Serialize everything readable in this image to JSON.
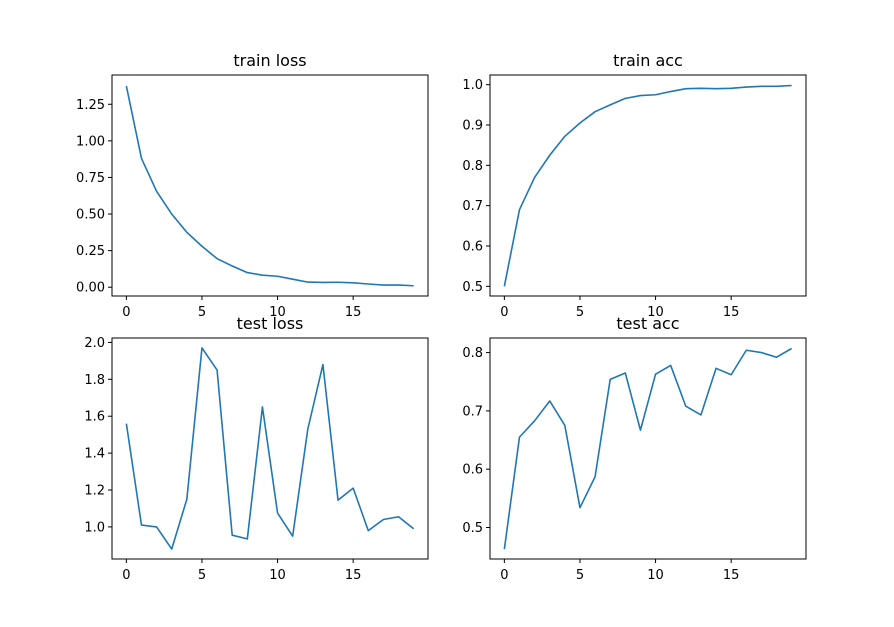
{
  "chart_data": [
    {
      "type": "line",
      "title": "train loss",
      "xlabel": "",
      "ylabel": "",
      "grid": false,
      "xlim": [
        -0.95,
        19.95
      ],
      "ylim": [
        -0.06,
        1.45
      ],
      "xticks": [
        0,
        5,
        10,
        15
      ],
      "xtick_labels": [
        "0",
        "5",
        "10",
        "15"
      ],
      "yticks": [
        0.0,
        0.25,
        0.5,
        0.75,
        1.0,
        1.25
      ],
      "ytick_labels": [
        "0.00",
        "0.25",
        "0.50",
        "0.75",
        "1.00",
        "1.25"
      ],
      "series": [
        {
          "color": "#1f77b4",
          "x": [
            0,
            1,
            2,
            3,
            4,
            5,
            6,
            7,
            8,
            9,
            10,
            11,
            12,
            13,
            14,
            15,
            16,
            17,
            18,
            19
          ],
          "y": [
            1.375,
            0.88,
            0.655,
            0.5,
            0.375,
            0.28,
            0.195,
            0.145,
            0.1,
            0.082,
            0.075,
            0.055,
            0.035,
            0.033,
            0.034,
            0.03,
            0.022,
            0.015,
            0.015,
            0.01
          ]
        }
      ]
    },
    {
      "type": "line",
      "title": "train acc",
      "xlabel": "",
      "ylabel": "",
      "grid": false,
      "xlim": [
        -0.95,
        19.95
      ],
      "ylim": [
        0.476,
        1.024
      ],
      "xticks": [
        0,
        5,
        10,
        15
      ],
      "xtick_labels": [
        "0",
        "5",
        "10",
        "15"
      ],
      "yticks": [
        0.5,
        0.6,
        0.7,
        0.8,
        0.9,
        1.0
      ],
      "ytick_labels": [
        "0.5",
        "0.6",
        "0.7",
        "0.8",
        "0.9",
        "1.0"
      ],
      "series": [
        {
          "color": "#1f77b4",
          "x": [
            0,
            1,
            2,
            3,
            4,
            5,
            6,
            7,
            8,
            9,
            10,
            11,
            12,
            13,
            14,
            15,
            16,
            17,
            18,
            19
          ],
          "y": [
            0.5,
            0.69,
            0.77,
            0.825,
            0.872,
            0.905,
            0.933,
            0.95,
            0.966,
            0.973,
            0.975,
            0.983,
            0.99,
            0.991,
            0.99,
            0.991,
            0.994,
            0.996,
            0.996,
            0.998
          ]
        }
      ]
    },
    {
      "type": "line",
      "title": "test loss",
      "xlabel": "",
      "ylabel": "",
      "grid": false,
      "xlim": [
        -0.95,
        19.95
      ],
      "ylim": [
        0.826,
        2.024
      ],
      "xticks": [
        0,
        5,
        10,
        15
      ],
      "xtick_labels": [
        "0",
        "5",
        "10",
        "15"
      ],
      "yticks": [
        1.0,
        1.2,
        1.4,
        1.6,
        1.8,
        2.0
      ],
      "ytick_labels": [
        "1.0",
        "1.2",
        "1.4",
        "1.6",
        "1.8",
        "2.0"
      ],
      "series": [
        {
          "color": "#1f77b4",
          "x": [
            0,
            1,
            2,
            3,
            4,
            5,
            6,
            7,
            8,
            9,
            10,
            11,
            12,
            13,
            14,
            15,
            16,
            17,
            18,
            19
          ],
          "y": [
            1.56,
            1.01,
            1.0,
            0.88,
            1.15,
            1.97,
            1.85,
            0.955,
            0.935,
            1.65,
            1.075,
            0.95,
            1.53,
            1.88,
            1.145,
            1.21,
            0.98,
            1.04,
            1.055,
            0.99
          ]
        }
      ]
    },
    {
      "type": "line",
      "title": "test acc",
      "xlabel": "",
      "ylabel": "",
      "grid": false,
      "xlim": [
        -0.95,
        19.95
      ],
      "ylim": [
        0.446,
        0.825
      ],
      "xticks": [
        0,
        5,
        10,
        15
      ],
      "xtick_labels": [
        "0",
        "5",
        "10",
        "15"
      ],
      "yticks": [
        0.5,
        0.6,
        0.7,
        0.8
      ],
      "ytick_labels": [
        "0.5",
        "0.6",
        "0.7",
        "0.8"
      ],
      "series": [
        {
          "color": "#1f77b4",
          "x": [
            0,
            1,
            2,
            3,
            4,
            5,
            6,
            7,
            8,
            9,
            10,
            11,
            12,
            13,
            14,
            15,
            16,
            17,
            18,
            19
          ],
          "y": [
            0.463,
            0.655,
            0.683,
            0.717,
            0.675,
            0.534,
            0.587,
            0.754,
            0.765,
            0.667,
            0.763,
            0.778,
            0.708,
            0.693,
            0.773,
            0.762,
            0.804,
            0.8,
            0.792,
            0.807
          ]
        }
      ]
    }
  ]
}
